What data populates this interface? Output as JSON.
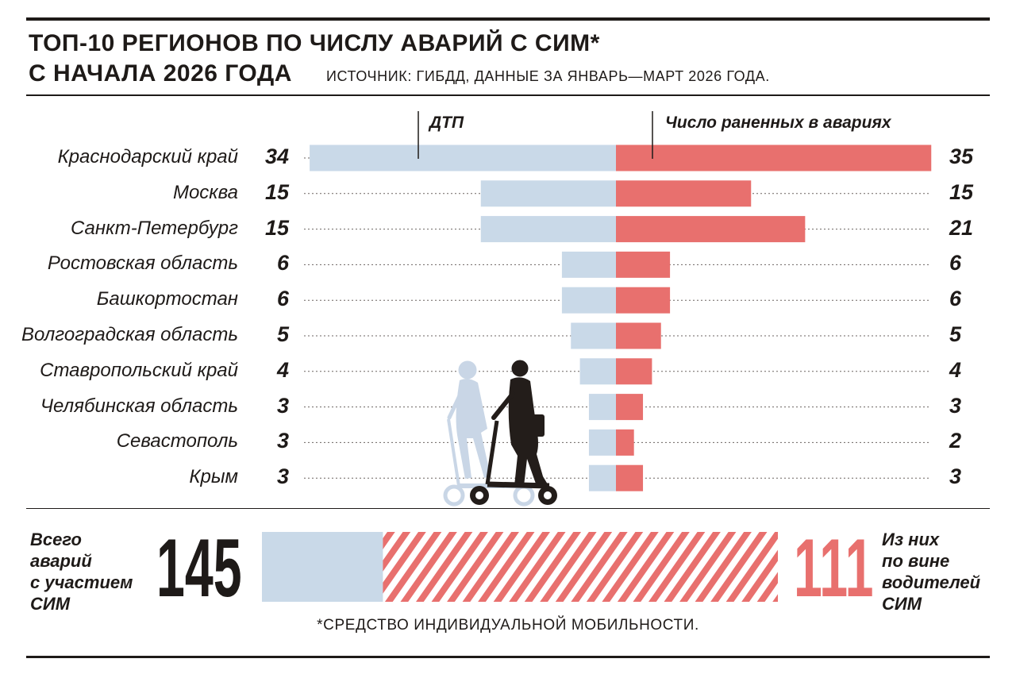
{
  "header": {
    "title_line1": "ТОП-10 РЕГИОНОВ ПО ЧИСЛУ АВАРИЙ С СИМ*",
    "title_line2": "С НАЧАЛА 2026 ГОДА",
    "source": "ИСТОЧНИК: ГИБДД, ДАННЫЕ ЗА ЯНВАРЬ—МАРТ 2026 ГОДА."
  },
  "chart_data": {
    "type": "bar",
    "orientation": "horizontal-butterfly",
    "categories": [
      "Краснодарский край",
      "Москва",
      "Санкт-Петербург",
      "Ростовская область",
      "Башкортостан",
      "Волгоградская область",
      "Ставропольский край",
      "Челябинская область",
      "Севастополь",
      "Крым"
    ],
    "series": [
      {
        "name": "ДТП",
        "values": [
          34,
          15,
          15,
          6,
          6,
          5,
          4,
          3,
          3,
          3
        ],
        "color": "#c9d9e8",
        "side": "left"
      },
      {
        "name": "Число раненных в авариях",
        "values": [
          35,
          15,
          21,
          6,
          6,
          5,
          4,
          3,
          2,
          3
        ],
        "color": "#e8706e",
        "side": "right"
      }
    ],
    "legend": "top",
    "grid": false
  },
  "totals": {
    "total_label_lines": [
      "Всего",
      "аварий",
      "с участием",
      "СИМ"
    ],
    "total_value": "145",
    "total_number": 145,
    "driver_fault_value": "111",
    "driver_fault_number": 111,
    "driver_fault_label_lines": [
      "Из них",
      "по вине",
      "водителей",
      "СИМ"
    ]
  },
  "footnote": "*СРЕДСТВО ИНДИВИДУАЛЬНОЙ МОБИЛЬНОСТИ.",
  "icons": [
    "scooter-rider-icon",
    "scooter-rider-shadow-icon"
  ],
  "colors": {
    "accent_red": "#e8706e",
    "light_blue": "#c9d9e8",
    "dark": "#1e1a18"
  }
}
